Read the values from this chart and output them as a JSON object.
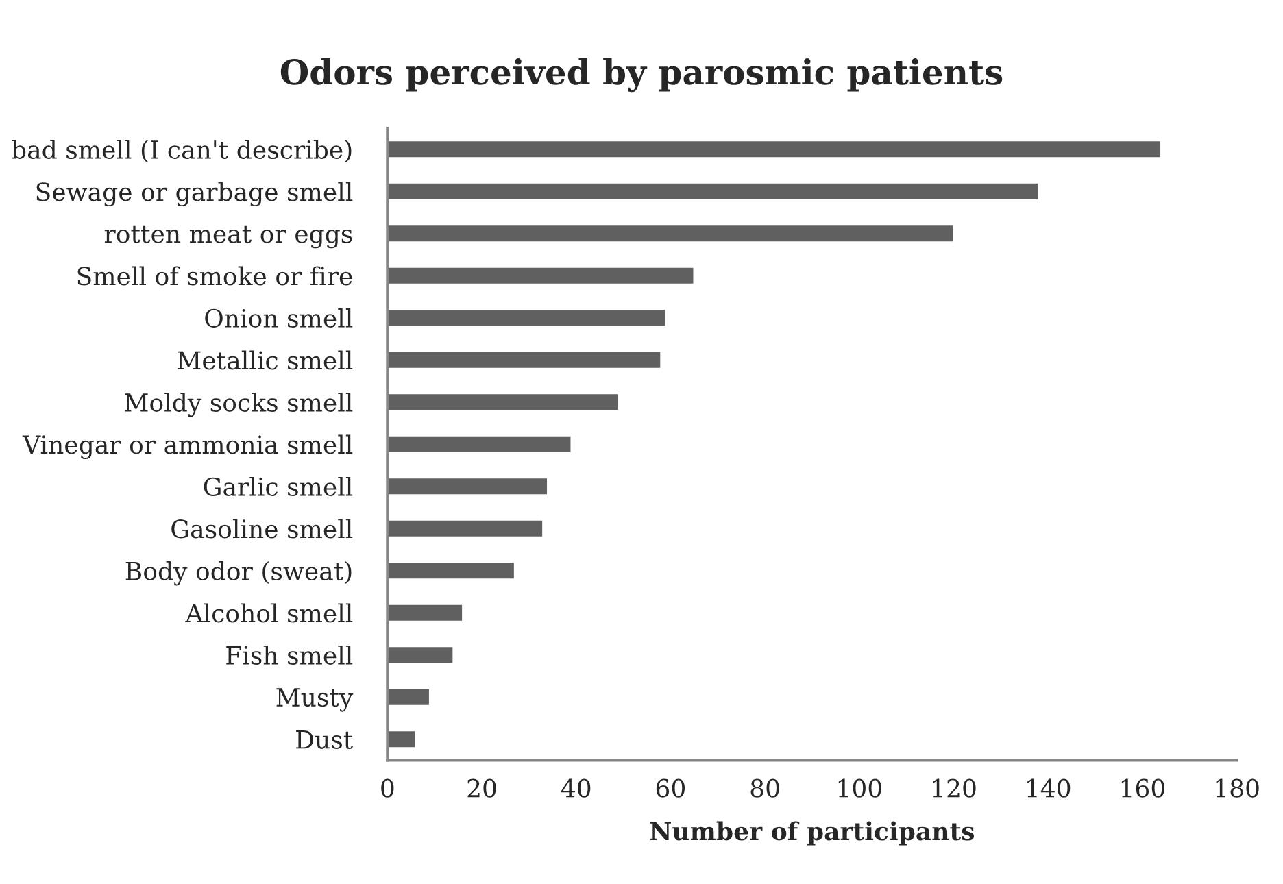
{
  "chart_data": {
    "type": "bar",
    "orientation": "horizontal",
    "title": "Odors perceived by parosmic patients",
    "xlabel": "Number of participants",
    "categories": [
      "bad smell (I can't describe)",
      "Sewage or garbage smell",
      "rotten meat or eggs",
      "Smell of smoke or fire",
      "Onion smell",
      "Metallic smell",
      "Moldy socks smell",
      "Vinegar or ammonia smell",
      "Garlic smell",
      "Gasoline smell",
      "Body odor (sweat)",
      "Alcohol smell",
      "Fish smell",
      "Musty",
      "Dust"
    ],
    "values": [
      164,
      138,
      120,
      65,
      59,
      58,
      49,
      39,
      34,
      33,
      27,
      16,
      14,
      9,
      6
    ],
    "color": "#606060",
    "xlim": [
      0,
      180
    ],
    "xticks": [
      0,
      20,
      40,
      60,
      80,
      100,
      120,
      140,
      160,
      180
    ],
    "grid": false
  }
}
